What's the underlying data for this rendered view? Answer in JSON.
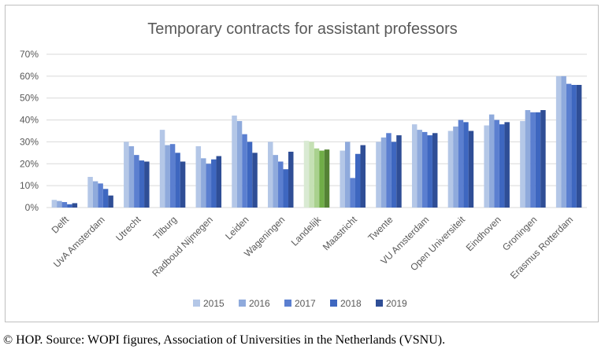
{
  "caption": "© HOP. Source: WOPI figures, Association of Universities in the Netherlands (VSNU).",
  "chart_data": {
    "type": "bar",
    "title": "Temporary contracts for assistant professors",
    "xlabel": "",
    "ylabel": "",
    "ylim": [
      0,
      70
    ],
    "yticks": [
      "0%",
      "10%",
      "20%",
      "30%",
      "40%",
      "50%",
      "60%",
      "70%"
    ],
    "grid": true,
    "legend_position": "bottom",
    "categories": [
      "Delft",
      "UvA Amsterdam",
      "Utrecht",
      "Tilburg",
      "Radboud Nijmegen",
      "Leiden",
      "Wageningen",
      "Landelijk",
      "Maastricht",
      "Twente",
      "VU Amsterdam",
      "Open Universiteit",
      "Eindhoven",
      "Groningen",
      "Erasmus Rotterdam"
    ],
    "highlight_category": "Landelijk",
    "series": [
      {
        "name": "2015",
        "color": "#b4c7e7",
        "highlight_color": "#d9ead3",
        "values": [
          3.5,
          14,
          30,
          35.5,
          28,
          42,
          30,
          30.5,
          26,
          30,
          38,
          35,
          37.5,
          39.5,
          60
        ]
      },
      {
        "name": "2016",
        "color": "#8faadc",
        "highlight_color": "#c5e0b4",
        "values": [
          3,
          12,
          28,
          28.5,
          22.5,
          39.5,
          24,
          30,
          30,
          32,
          35.5,
          37,
          42.5,
          44.5,
          60
        ]
      },
      {
        "name": "2017",
        "color": "#5b7fd0",
        "highlight_color": "#a9d18e",
        "values": [
          2.5,
          11,
          24,
          29,
          20,
          33.5,
          21,
          27,
          13.5,
          34,
          34.5,
          40,
          40,
          43.5,
          56.5
        ]
      },
      {
        "name": "2018",
        "color": "#3e67c0",
        "highlight_color": "#70ad47",
        "values": [
          1.5,
          8.5,
          21.5,
          25,
          22,
          30,
          17.5,
          26,
          24.5,
          30,
          33,
          39,
          38,
          43.5,
          56
        ]
      },
      {
        "name": "2019",
        "color": "#2f4e96",
        "highlight_color": "#548235",
        "values": [
          2,
          5.5,
          21,
          21,
          23.5,
          25,
          25.5,
          26.5,
          28.5,
          33,
          34,
          35,
          39,
          44.5,
          56
        ]
      }
    ]
  }
}
